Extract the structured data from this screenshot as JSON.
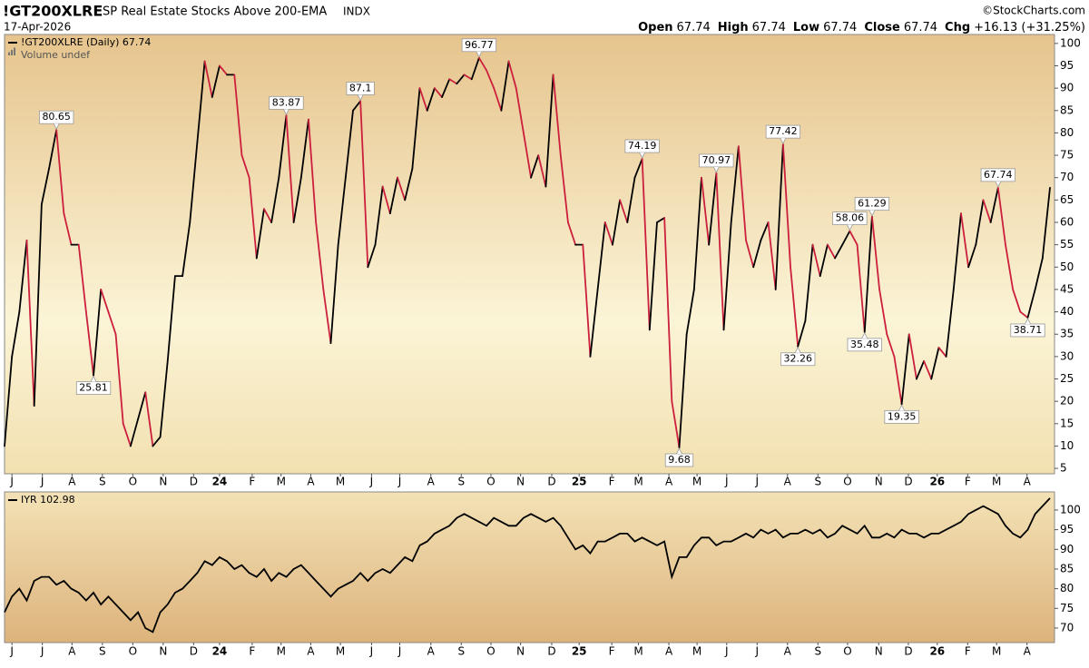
{
  "header": {
    "symbol": "!GT200XLRE",
    "description": "SP Real Estate Stocks Above 200-EMA",
    "exchange": "INDX",
    "date": "17-Apr-2026",
    "copyright": "©StockCharts.com",
    "ohlc": [
      {
        "label": "Open",
        "value": "67.74"
      },
      {
        "label": "High",
        "value": "67.74"
      },
      {
        "label": "Low",
        "value": "67.74"
      },
      {
        "label": "Close",
        "value": "67.74"
      },
      {
        "label": "Chg",
        "value": "+16.13 (+31.25%)"
      }
    ]
  },
  "chart_data": [
    {
      "type": "line",
      "legend": "!GT200XLRE (Daily) 67.74",
      "volume_note": "Volume undef",
      "series": [
        {
          "up_color": "#000000",
          "down_color": "#cc1f3d",
          "values": [
            10,
            30,
            40,
            56,
            19,
            64,
            72,
            80.65,
            62,
            55,
            55,
            40,
            25.81,
            45,
            40,
            35,
            15,
            10,
            16,
            22,
            10,
            12,
            29,
            48,
            48,
            60,
            78,
            96,
            88,
            95,
            93,
            93,
            75,
            70,
            52,
            63,
            60,
            70,
            83.87,
            60,
            70,
            83,
            60,
            45,
            33,
            55,
            70,
            85,
            87.1,
            50,
            55,
            68,
            62,
            70,
            65,
            72,
            90,
            85,
            90,
            88,
            92,
            91,
            93,
            92,
            96.77,
            94,
            90,
            85,
            96,
            90,
            80,
            70,
            75,
            68,
            93,
            75,
            60,
            55,
            55,
            30,
            45,
            60,
            55,
            65,
            60,
            70,
            74.19,
            36,
            60,
            61,
            20,
            9.68,
            35,
            45,
            70,
            55,
            70.97,
            36,
            60,
            77,
            56,
            50,
            56,
            60,
            45,
            77.42,
            50,
            32.26,
            38,
            55,
            48,
            55,
            52,
            55,
            58.06,
            55,
            35.48,
            61.29,
            45,
            35,
            30,
            19.35,
            35,
            25,
            29,
            25,
            32,
            30,
            45,
            62,
            50,
            55,
            65,
            60,
            67.74,
            55,
            45,
            40,
            38.71,
            45,
            52,
            67.74
          ]
        }
      ],
      "labeled_points": [
        7,
        12,
        38,
        48,
        64,
        86,
        91,
        96,
        105,
        107,
        114,
        116,
        117,
        121,
        134,
        138
      ],
      "xlim": [
        0,
        141
      ],
      "xticks": [
        {
          "value": 1,
          "label": "J"
        },
        {
          "value": 5.1,
          "label": "J"
        },
        {
          "value": 9.1,
          "label": "A"
        },
        {
          "value": 13.2,
          "label": "S"
        },
        {
          "value": 17.3,
          "label": "O"
        },
        {
          "value": 21.4,
          "label": "N"
        },
        {
          "value": 25.5,
          "label": "D"
        },
        {
          "value": 29,
          "label": "24"
        },
        {
          "value": 33.4,
          "label": "F"
        },
        {
          "value": 37.3,
          "label": "M"
        },
        {
          "value": 41.3,
          "label": "A"
        },
        {
          "value": 45.3,
          "label": "M"
        },
        {
          "value": 49.5,
          "label": "J"
        },
        {
          "value": 53.3,
          "label": "J"
        },
        {
          "value": 57.5,
          "label": "A"
        },
        {
          "value": 61.6,
          "label": "S"
        },
        {
          "value": 65.6,
          "label": "O"
        },
        {
          "value": 69.6,
          "label": "N"
        },
        {
          "value": 73.8,
          "label": "D"
        },
        {
          "value": 77.5,
          "label": "25"
        },
        {
          "value": 81.9,
          "label": "F"
        },
        {
          "value": 85.5,
          "label": "M"
        },
        {
          "value": 89.6,
          "label": "A"
        },
        {
          "value": 93.4,
          "label": "M"
        },
        {
          "value": 97.4,
          "label": "J"
        },
        {
          "value": 101.5,
          "label": "J"
        },
        {
          "value": 105.6,
          "label": "A"
        },
        {
          "value": 109.7,
          "label": "S"
        },
        {
          "value": 113.7,
          "label": "O"
        },
        {
          "value": 117.9,
          "label": "N"
        },
        {
          "value": 121.9,
          "label": "D"
        },
        {
          "value": 125.8,
          "label": "26"
        },
        {
          "value": 129.9,
          "label": "F"
        },
        {
          "value": 133.8,
          "label": "M"
        },
        {
          "value": 137.9,
          "label": "A"
        }
      ],
      "ylim": [
        3.8,
        102
      ],
      "yticks": [
        5,
        10,
        15,
        20,
        25,
        30,
        35,
        40,
        45,
        50,
        55,
        60,
        65,
        70,
        75,
        80,
        85,
        90,
        95,
        100
      ]
    },
    {
      "type": "line",
      "legend": "IYR 102.98",
      "series": [
        {
          "color": "#000000",
          "values": [
            74,
            78,
            80,
            77,
            82,
            83,
            83,
            81,
            82,
            80,
            79,
            77,
            79,
            76,
            78,
            76,
            74,
            72,
            74,
            70,
            69,
            74,
            76,
            79,
            80,
            82,
            84,
            87,
            86,
            88,
            87,
            85,
            86,
            84,
            83,
            85,
            82,
            84,
            83,
            85,
            86,
            84,
            82,
            80,
            78,
            80,
            81,
            82,
            84,
            82,
            84,
            85,
            84,
            86,
            88,
            87,
            91,
            92,
            94,
            95,
            96,
            98,
            99,
            98,
            97,
            96,
            98,
            97,
            96,
            96,
            98,
            99,
            98,
            97,
            98,
            96,
            93,
            90,
            91,
            89,
            92,
            92,
            93,
            94,
            94,
            92,
            93,
            92,
            91,
            92,
            83,
            88,
            88,
            91,
            93,
            93,
            91,
            92,
            92,
            93,
            94,
            93,
            95,
            94,
            95,
            93,
            94,
            94,
            95,
            94,
            95,
            93,
            94,
            96,
            95,
            94,
            96,
            93,
            93,
            94,
            93,
            95,
            94,
            94,
            93,
            94,
            94,
            95,
            96,
            97,
            99,
            100,
            101,
            100,
            99,
            96,
            94,
            93,
            95,
            99,
            101,
            103
          ]
        }
      ],
      "xlim": [
        0,
        141
      ],
      "xticks": [
        {
          "value": 1,
          "label": "J"
        },
        {
          "value": 5.1,
          "label": "J"
        },
        {
          "value": 9.1,
          "label": "A"
        },
        {
          "value": 13.2,
          "label": "S"
        },
        {
          "value": 17.3,
          "label": "O"
        },
        {
          "value": 21.4,
          "label": "N"
        },
        {
          "value": 25.5,
          "label": "D"
        },
        {
          "value": 29,
          "label": "24"
        },
        {
          "value": 33.4,
          "label": "F"
        },
        {
          "value": 37.3,
          "label": "M"
        },
        {
          "value": 41.3,
          "label": "A"
        },
        {
          "value": 45.3,
          "label": "M"
        },
        {
          "value": 49.5,
          "label": "J"
        },
        {
          "value": 53.3,
          "label": "J"
        },
        {
          "value": 57.5,
          "label": "A"
        },
        {
          "value": 61.6,
          "label": "S"
        },
        {
          "value": 65.6,
          "label": "O"
        },
        {
          "value": 69.6,
          "label": "N"
        },
        {
          "value": 73.8,
          "label": "D"
        },
        {
          "value": 77.5,
          "label": "25"
        },
        {
          "value": 81.9,
          "label": "F"
        },
        {
          "value": 85.5,
          "label": "M"
        },
        {
          "value": 89.6,
          "label": "A"
        },
        {
          "value": 93.4,
          "label": "M"
        },
        {
          "value": 97.4,
          "label": "J"
        },
        {
          "value": 101.5,
          "label": "J"
        },
        {
          "value": 105.6,
          "label": "A"
        },
        {
          "value": 109.7,
          "label": "S"
        },
        {
          "value": 113.7,
          "label": "O"
        },
        {
          "value": 117.9,
          "label": "N"
        },
        {
          "value": 121.9,
          "label": "D"
        },
        {
          "value": 125.8,
          "label": "26"
        },
        {
          "value": 129.9,
          "label": "F"
        },
        {
          "value": 133.8,
          "label": "M"
        },
        {
          "value": 137.9,
          "label": "A"
        }
      ],
      "ylim": [
        66.3,
        104.6
      ],
      "yticks": [
        70,
        75,
        80,
        85,
        90,
        95,
        100
      ]
    }
  ]
}
